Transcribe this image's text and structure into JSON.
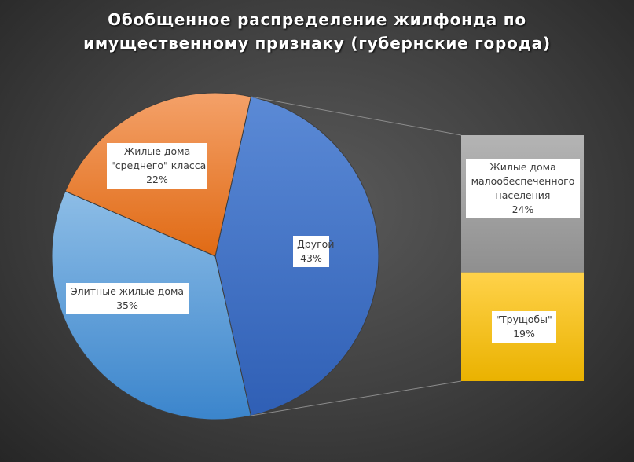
{
  "chart_data": {
    "type": "pie-of-bar",
    "title": "Обобщенное распределение жилфонда по\nимущественному признаку (губернские города)",
    "pie_slices": [
      {
        "label": "Другой",
        "value": 43,
        "value_label": "43%",
        "color": "#4472C4"
      },
      {
        "label": "Элитные жилые дома",
        "value": 35,
        "value_label": "35%",
        "color": "#5B9BD5"
      },
      {
        "label": "Жилые дома \"среднего\" класса",
        "value": 22,
        "value_label": "22%",
        "color": "#ED7D31"
      }
    ],
    "bar_segments": [
      {
        "label": "Жилые дома малообеспеченного населения",
        "value": 24,
        "value_label": "24%",
        "color": "#A5A5A5"
      },
      {
        "label": "\"Трущобы\"",
        "value": 19,
        "value_label": "19%",
        "color": "#FFC000"
      }
    ],
    "labels": {
      "other": [
        "Другой",
        "43%"
      ],
      "elite": [
        "Элитные жилые дома",
        "35%"
      ],
      "middle": [
        "Жилые дома",
        "\"среднего\" класса",
        "22%"
      ],
      "poor": [
        "Жилые дома",
        "малообеспеченного",
        "населения",
        "24%"
      ],
      "slums": [
        "\"Трущобы\"",
        "19%"
      ]
    }
  }
}
